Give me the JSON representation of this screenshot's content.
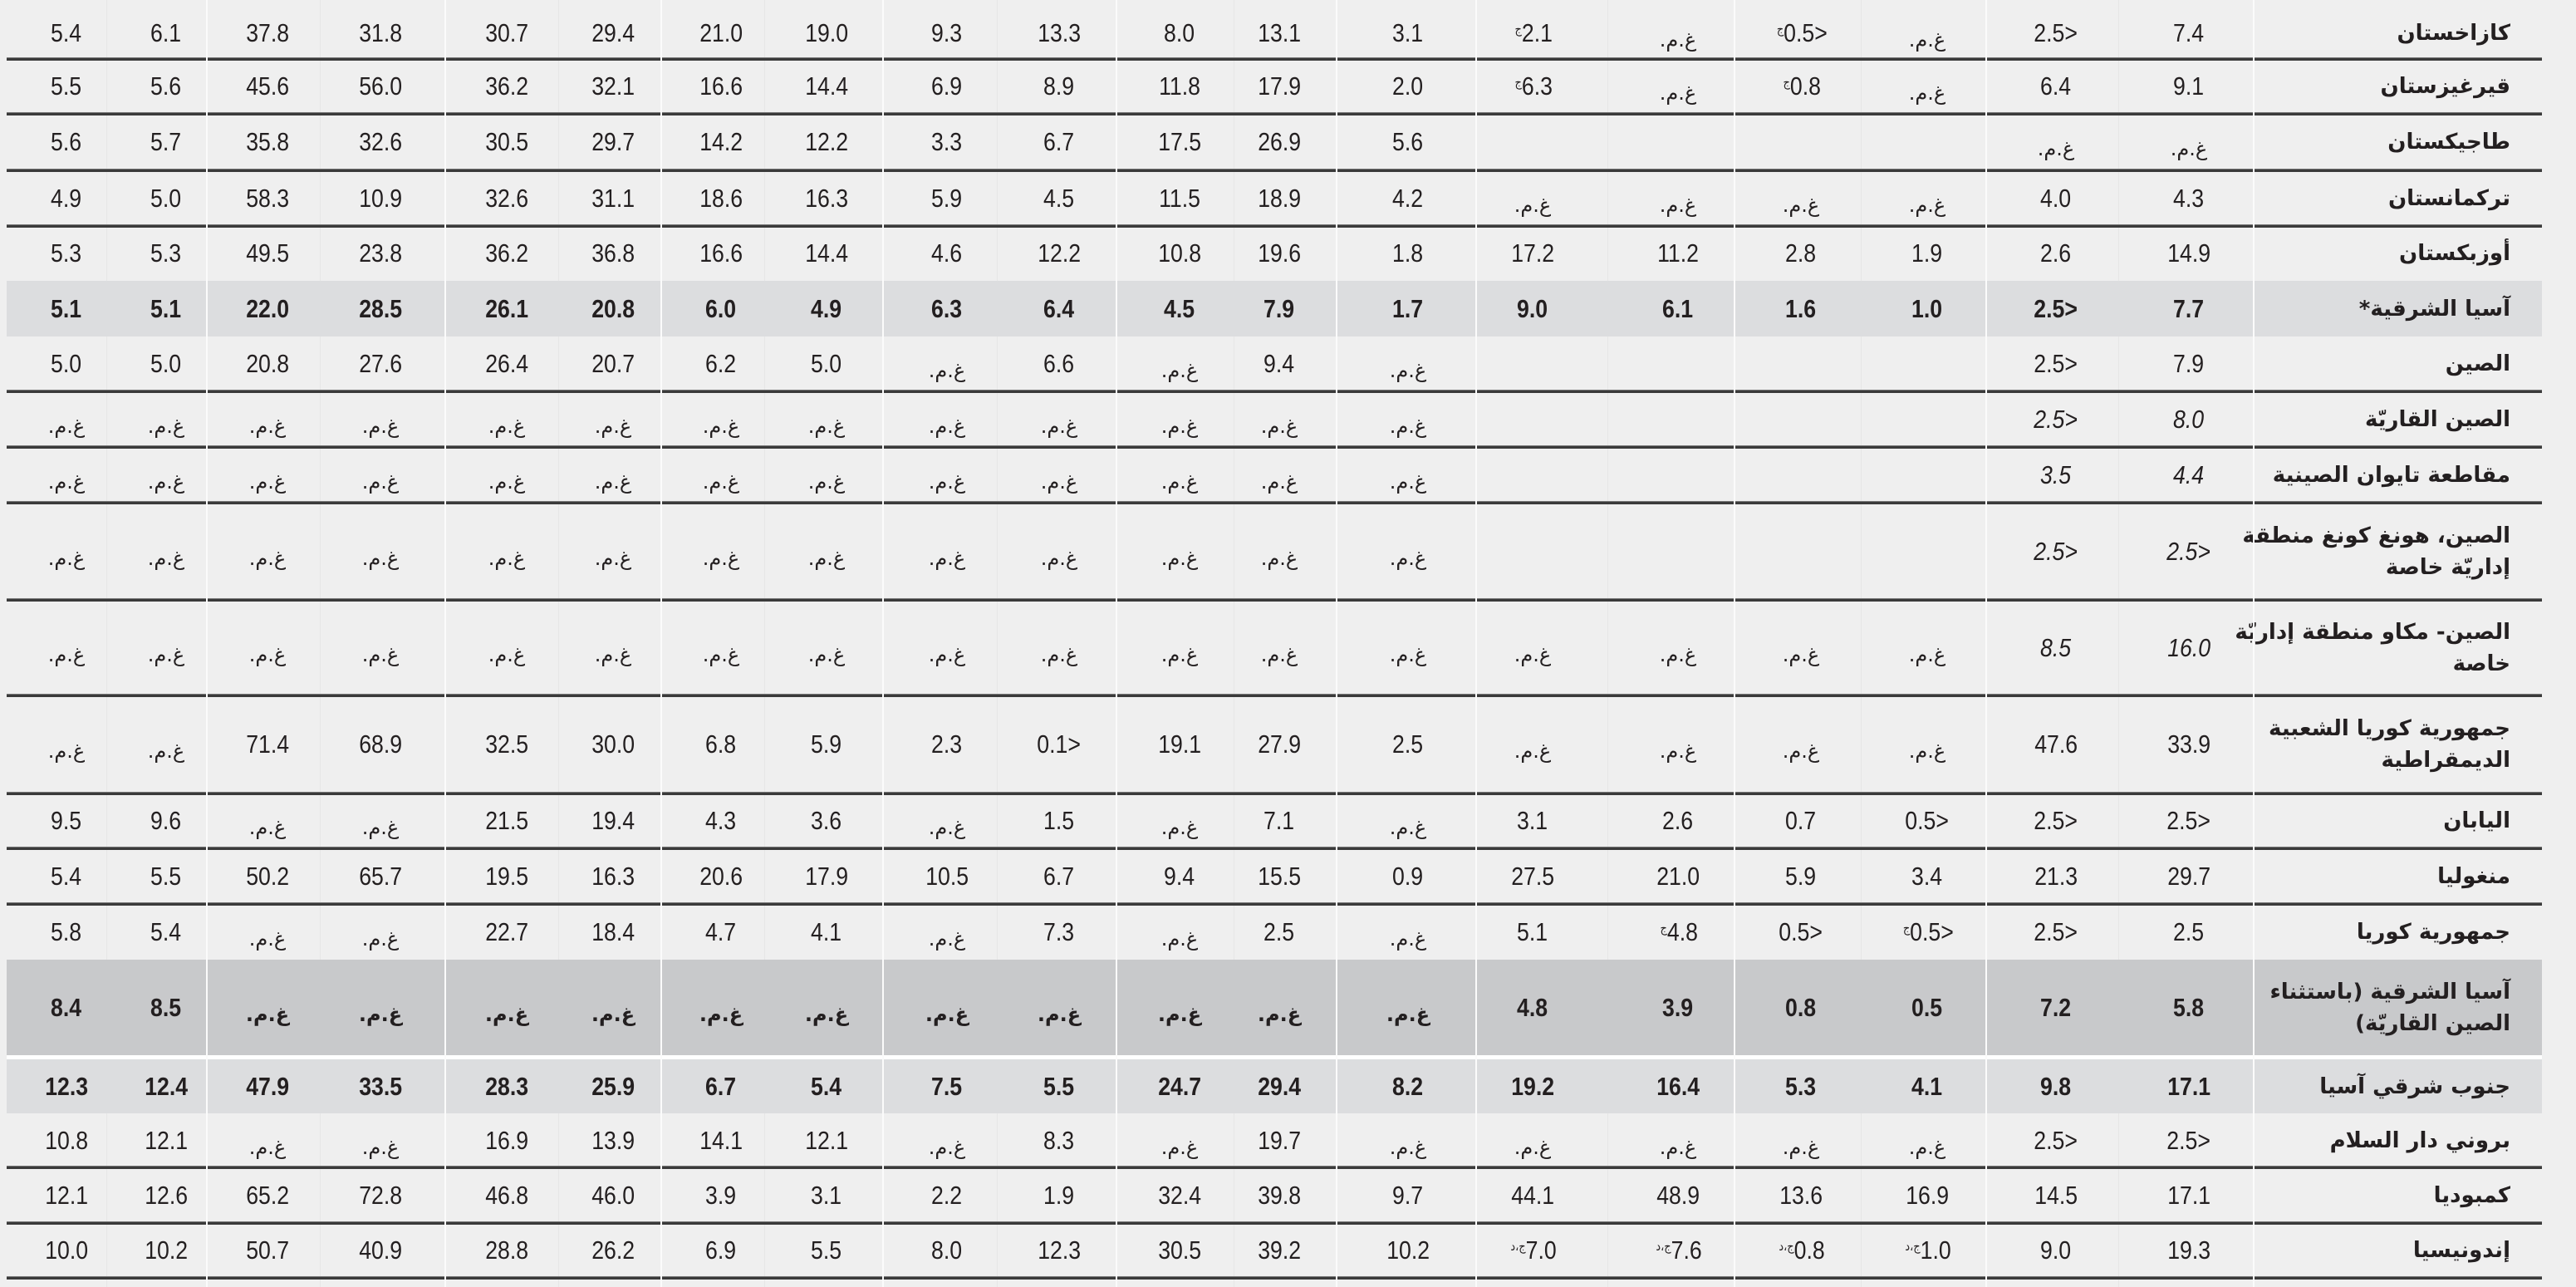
{
  "colors": {
    "background": "#efefef",
    "subtotal_shade": "#dcdddf",
    "subregion_shade": "#c8c9cb",
    "rule": "#3a3a3a"
  },
  "rows": [
    {
      "name": "كازاخستان",
      "type": "normal",
      "cells": [
        "7.4",
        "<2.5",
        "غ.م.",
        {
          "v": "<0.5",
          "note": "ج"
        },
        "غ.م.",
        {
          "v": "2.1",
          "note": "ج"
        },
        "3.1",
        "13.1",
        "8.0",
        "13.3",
        "9.3",
        "19.0",
        "21.0",
        "29.4",
        "30.7",
        "31.8",
        "37.8",
        "6.1",
        "5.4"
      ]
    },
    {
      "name": "قيرغيزستان",
      "type": "normal",
      "cells": [
        "9.1",
        "6.4",
        "غ.م.",
        {
          "v": "0.8",
          "note": "ج"
        },
        "غ.م.",
        {
          "v": "6.3",
          "note": "ج"
        },
        "2.0",
        "17.9",
        "11.8",
        "8.9",
        "6.9",
        "14.4",
        "16.6",
        "32.1",
        "36.2",
        "56.0",
        "45.6",
        "5.6",
        "5.5"
      ]
    },
    {
      "name": "طاجيكستان",
      "type": "normal",
      "cells": [
        "غ.م.",
        "غ.م.",
        "",
        "",
        "",
        "",
        "5.6",
        "26.9",
        "17.5",
        "6.7",
        "3.3",
        "12.2",
        "14.2",
        "29.7",
        "30.5",
        "32.6",
        "35.8",
        "5.7",
        "5.6"
      ]
    },
    {
      "name": "تركمانستان",
      "type": "normal",
      "cells": [
        "4.3",
        "4.0",
        "غ.م.",
        "غ.م.",
        "غ.م.",
        "غ.م.",
        "4.2",
        "18.9",
        "11.5",
        "4.5",
        "5.9",
        "16.3",
        "18.6",
        "31.1",
        "32.6",
        "10.9",
        "58.3",
        "5.0",
        "4.9"
      ]
    },
    {
      "name": "أوزبكستان",
      "type": "normal",
      "cells": [
        "14.9",
        "2.6",
        "1.9",
        "2.8",
        "11.2",
        "17.2",
        "1.8",
        "19.6",
        "10.8",
        "12.2",
        "4.6",
        "14.4",
        "16.6",
        "36.8",
        "36.2",
        "23.8",
        "49.5",
        "5.3",
        "5.3"
      ]
    },
    {
      "name": "آسيا الشرقية*",
      "type": "total",
      "cells": [
        "7.7",
        "<2.5",
        "1.0",
        "1.6",
        "6.1",
        "9.0",
        "1.7",
        "7.9",
        "4.5",
        "6.4",
        "6.3",
        "4.9",
        "6.0",
        "20.8",
        "26.1",
        "28.5",
        "22.0",
        "5.1",
        "5.1"
      ]
    },
    {
      "name": "الصين",
      "type": "normal",
      "cells": [
        "7.9",
        "<2.5",
        "",
        "",
        "",
        "",
        "غ.م.",
        "9.4",
        "غ.م.",
        "6.6",
        "غ.م.",
        "5.0",
        "6.2",
        "20.7",
        "26.4",
        "27.6",
        "20.8",
        "5.0",
        "5.0"
      ]
    },
    {
      "name": "الصين القاريّة",
      "type": "normal",
      "italic_first": true,
      "cells": [
        "8.0",
        "<2.5",
        "",
        "",
        "",
        "",
        "غ.م.",
        "غ.م.",
        "غ.م.",
        "غ.م.",
        "غ.م.",
        "غ.م.",
        "غ.م.",
        "غ.م.",
        "غ.م.",
        "غ.م.",
        "غ.م.",
        "غ.م.",
        "غ.م."
      ]
    },
    {
      "name": "مقاطعة تايوان الصينية",
      "type": "normal",
      "italic_first": true,
      "cells": [
        "4.4",
        "3.5",
        "",
        "",
        "",
        "",
        "غ.م.",
        "غ.م.",
        "غ.م.",
        "غ.م.",
        "غ.م.",
        "غ.م.",
        "غ.م.",
        "غ.م.",
        "غ.م.",
        "غ.م.",
        "غ.م.",
        "غ.م.",
        "غ.م."
      ]
    },
    {
      "name": "الصين، هونغ كونغ منطقة إداريّة خاصة",
      "type": "normal",
      "italic_first": true,
      "cells": [
        "<2.5",
        "<2.5",
        "",
        "",
        "",
        "",
        "غ.م.",
        "غ.م.",
        "غ.م.",
        "غ.م.",
        "غ.م.",
        "غ.م.",
        "غ.م.",
        "غ.م.",
        "غ.م.",
        "غ.م.",
        "غ.م.",
        "غ.م.",
        "غ.م."
      ]
    },
    {
      "name": "الصين- مكاو منطقة إداريّة خاصة",
      "type": "normal",
      "italic_first": true,
      "cells": [
        "16.0",
        "8.5",
        "غ.م.",
        "غ.م.",
        "غ.م.",
        "غ.م.",
        "غ.م.",
        "غ.م.",
        "غ.م.",
        "غ.م.",
        "غ.م.",
        "غ.م.",
        "غ.م.",
        "غ.م.",
        "غ.م.",
        "غ.م.",
        "غ.م.",
        "غ.م.",
        "غ.م."
      ]
    },
    {
      "name": "جمهورية كوريا الشعبية الديمقراطية",
      "type": "normal",
      "cells": [
        "33.9",
        "47.6",
        "غ.م.",
        "غ.م.",
        "غ.م.",
        "غ.م.",
        "2.5",
        "27.9",
        "19.1",
        "<0.1",
        "2.3",
        "5.9",
        "6.8",
        "30.0",
        "32.5",
        "68.9",
        "71.4",
        "غ.م.",
        "غ.م."
      ]
    },
    {
      "name": "اليابان",
      "type": "normal",
      "cells": [
        "<2.5",
        "<2.5",
        "<0.5",
        "0.7",
        "2.6",
        "3.1",
        "غ.م.",
        "7.1",
        "غ.م.",
        "1.5",
        "غ.م.",
        "3.6",
        "4.3",
        "19.4",
        "21.5",
        "غ.م.",
        "غ.م.",
        "9.6",
        "9.5"
      ]
    },
    {
      "name": "منغوليا",
      "type": "normal",
      "cells": [
        "29.7",
        "21.3",
        "3.4",
        "5.9",
        "21.0",
        "27.5",
        "0.9",
        "15.5",
        "9.4",
        "6.7",
        "10.5",
        "17.9",
        "20.6",
        "16.3",
        "19.5",
        "65.7",
        "50.2",
        "5.5",
        "5.4"
      ]
    },
    {
      "name": "جمهورية كوريا",
      "type": "normal",
      "cells": [
        "2.5",
        "<2.5",
        {
          "v": "<0.5",
          "note": "ج"
        },
        "<0.5",
        {
          "v": "4.8",
          "note": "ج"
        },
        "5.1",
        "غ.م.",
        "2.5",
        "غ.م.",
        "7.3",
        "غ.م.",
        "4.1",
        "4.7",
        "18.4",
        "22.7",
        "غ.م.",
        "غ.م.",
        "5.4",
        "5.8"
      ]
    },
    {
      "name": "آسيا الشرقية (باستثناء الصين القاريّة)",
      "type": "total2",
      "cells": [
        "5.8",
        "7.2",
        "0.5",
        "0.8",
        "3.9",
        "4.8",
        "غ.م.",
        "غ.م.",
        "غ.م.",
        "غ.م.",
        "غ.م.",
        "غ.م.",
        "غ.م.",
        "غ.م.",
        "غ.م.",
        "غ.م.",
        "غ.م.",
        "8.5",
        "8.4"
      ]
    },
    {
      "name": "جنوب شرقي آسيا",
      "type": "total",
      "cells": [
        "17.1",
        "9.8",
        "4.1",
        "5.3",
        "16.4",
        "19.2",
        "8.2",
        "29.4",
        "24.7",
        "5.5",
        "7.5",
        "5.4",
        "6.7",
        "25.9",
        "28.3",
        "33.5",
        "47.9",
        "12.4",
        "12.3"
      ]
    },
    {
      "name": "بروني دار السلام",
      "type": "normal",
      "cells": [
        "<2.5",
        "<2.5",
        "غ.م.",
        "غ.م.",
        "غ.م.",
        "غ.م.",
        "غ.م.",
        "19.7",
        "غ.م.",
        "8.3",
        "غ.م.",
        "12.1",
        "14.1",
        "13.9",
        "16.9",
        "غ.م.",
        "غ.م.",
        "12.1",
        "10.8"
      ]
    },
    {
      "name": "كمبوديا",
      "type": "normal",
      "cells": [
        "17.1",
        "14.5",
        "16.9",
        "13.6",
        "48.9",
        "44.1",
        "9.7",
        "39.8",
        "32.4",
        "1.9",
        "2.2",
        "3.1",
        "3.9",
        "46.0",
        "46.8",
        "72.8",
        "65.2",
        "12.6",
        "12.1"
      ]
    },
    {
      "name": "إندونيسيا",
      "type": "normal",
      "cells": [
        "19.3",
        "9.0",
        {
          "v": "1.0",
          "note": "ج،د"
        },
        {
          "v": "0.8",
          "note": "ج،د"
        },
        {
          "v": "7.6",
          "note": "ج،د"
        },
        {
          "v": "7.0",
          "note": "ج،د"
        },
        "10.2",
        "39.2",
        "30.5",
        "12.3",
        "8.0",
        "5.5",
        "6.9",
        "26.2",
        "28.8",
        "40.9",
        "50.7",
        "10.2",
        "10.0"
      ]
    }
  ]
}
